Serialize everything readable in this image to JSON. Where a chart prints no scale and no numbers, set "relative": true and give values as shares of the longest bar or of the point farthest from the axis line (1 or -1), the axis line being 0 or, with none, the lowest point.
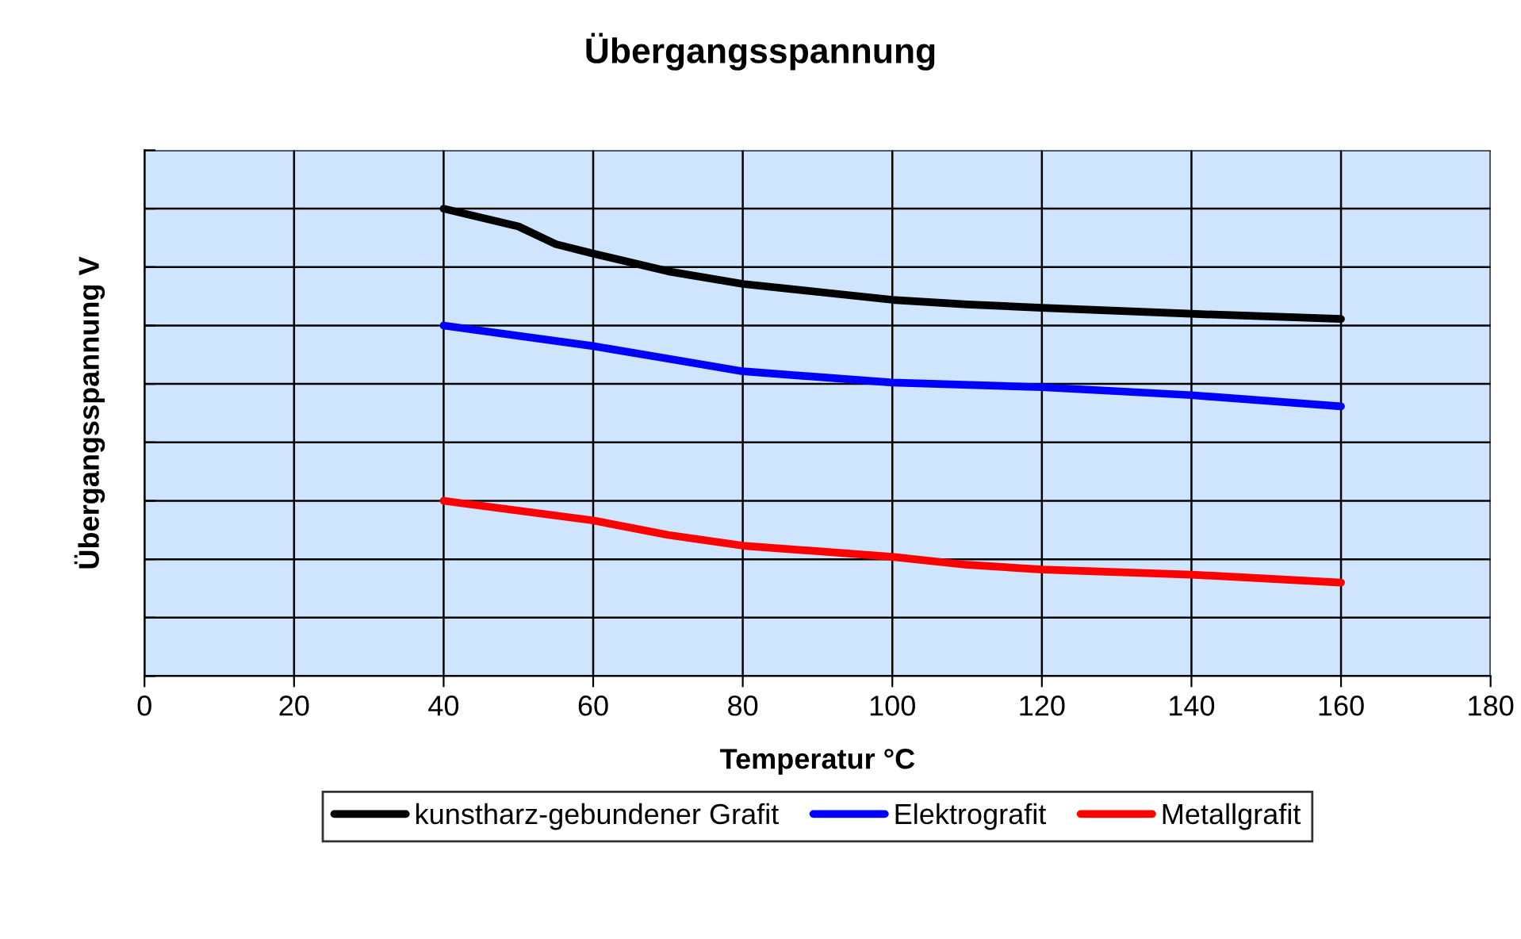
{
  "chart_data": {
    "type": "line",
    "title": "Übergangsspannung",
    "xlabel": "Temperatur °C",
    "ylabel": "Übergangsspannung V",
    "relative": true,
    "xlim": [
      0,
      180
    ],
    "xticks": [
      0,
      20,
      40,
      60,
      80,
      100,
      120,
      140,
      160,
      180
    ],
    "grid": true,
    "legend": "bottom",
    "tick_labels": "x",
    "marker": "none",
    "line_style": "solid",
    "series": [
      {
        "name": "kunstharz-gebundener Grafit",
        "color": "#000000",
        "x": [
          40,
          50,
          55,
          60,
          70,
          80,
          90,
          100,
          110,
          120,
          140,
          160
        ],
        "values": [
          1,
          0.962,
          0.924,
          0.904,
          0.866,
          0.839,
          0.822,
          0.805,
          0.795,
          0.788,
          0.775,
          0.764
        ]
      },
      {
        "name": "Elektrografit",
        "color": "#0000ff",
        "x": [
          40,
          60,
          70,
          80,
          100,
          120,
          140,
          160
        ],
        "values": [
          0.75,
          0.706,
          0.679,
          0.652,
          0.628,
          0.618,
          0.601,
          0.577
        ]
      },
      {
        "name": "Metallgrafit",
        "color": "#ff0000",
        "x": [
          40,
          60,
          70,
          80,
          100,
          110,
          120,
          140,
          160
        ],
        "values": [
          0.375,
          0.333,
          0.302,
          0.279,
          0.255,
          0.238,
          0.228,
          0.217,
          0.2
        ]
      }
    ]
  }
}
